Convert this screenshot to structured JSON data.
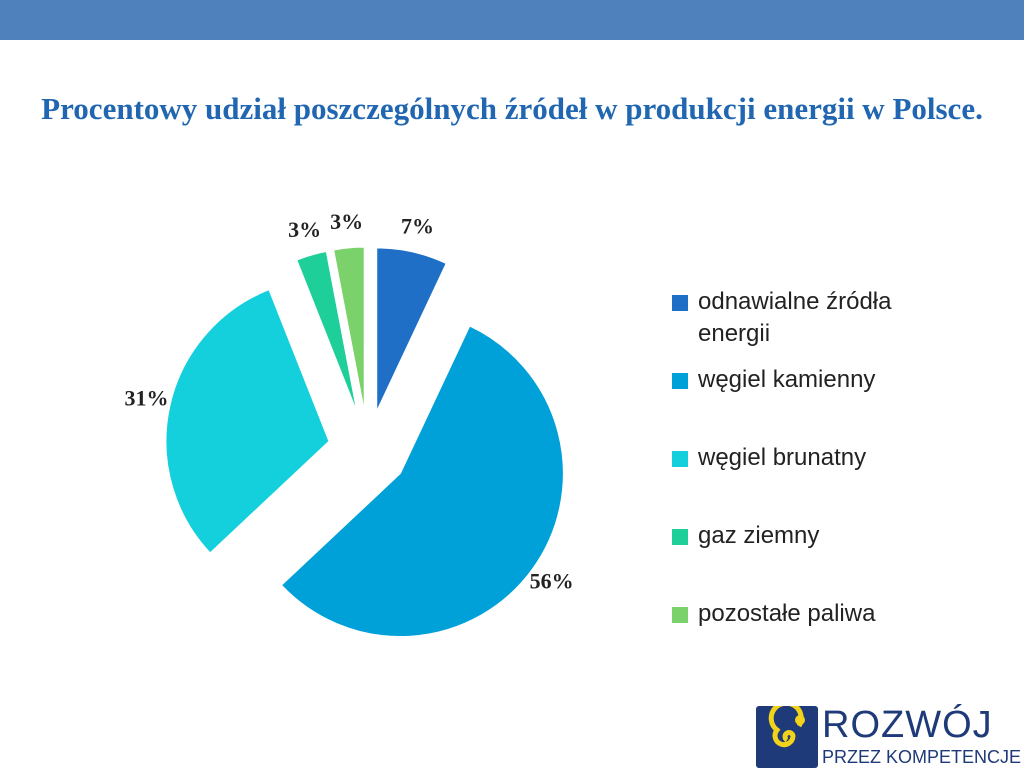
{
  "chart_data": {
    "type": "pie",
    "title": "Procentowy udział poszczególnych źródeł w produkcji energii w Polsce.",
    "categories": [
      "odnawialne źródła energii",
      "węgiel kamienny",
      "węgiel brunatny",
      "gaz ziemny",
      "pozostałe paliwa"
    ],
    "values": [
      7,
      56,
      31,
      3,
      3
    ],
    "value_labels": [
      "7%",
      "56%",
      "31%",
      "3%",
      "3%"
    ],
    "colors": [
      "#1f6fc6",
      "#00a0d8",
      "#14d0dc",
      "#1fcf9a",
      "#7cd26a"
    ],
    "legend": "right"
  },
  "logo": {
    "line1": "ROZWÓJ",
    "line2": "PRZEZ KOMPETENCJE"
  }
}
